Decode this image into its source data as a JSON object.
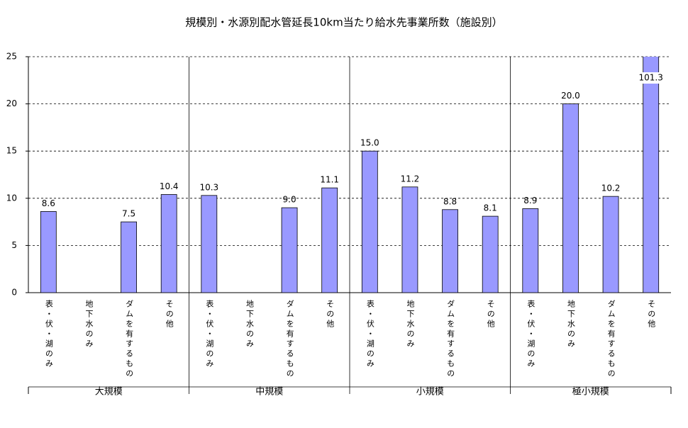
{
  "chart_data": {
    "type": "bar",
    "title": "規模別・水源別配水管延長10km当たり給水先事業所数（施設別）",
    "groups": [
      "大規模",
      "中規模",
      "小規模",
      "極小規模"
    ],
    "categories": [
      "表・伏・湖のみ",
      "地下水のみ",
      "ダムを有するもの",
      "その他",
      "表・伏・湖のみ",
      "地下水のみ",
      "ダムを有するもの",
      "その他",
      "表・伏・湖のみ",
      "地下水のみ",
      "ダムを有するもの",
      "その他",
      "表・伏・湖のみ",
      "地下水のみ",
      "ダムを有するもの",
      "その他"
    ],
    "values": [
      8.6,
      null,
      7.5,
      10.4,
      10.3,
      null,
      9.0,
      11.1,
      15.0,
      11.2,
      8.8,
      8.1,
      8.9,
      20.0,
      10.2,
      101.3
    ],
    "value_labels": [
      "8.6",
      null,
      "7.5",
      "10.4",
      "10.3",
      null,
      "9.0",
      "11.1",
      "15.0",
      "11.2",
      "8.8",
      "8.1",
      "8.9",
      "20.0",
      "10.2",
      "101.3"
    ],
    "color": "#9999ff",
    "ylim": [
      0,
      25
    ],
    "yticks": [
      0,
      5,
      10,
      15,
      20,
      25
    ],
    "grid": true
  }
}
